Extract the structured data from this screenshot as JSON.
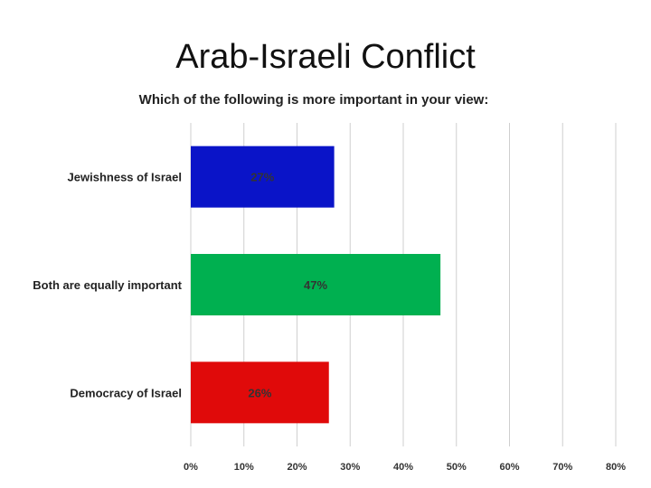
{
  "slide": {
    "title": "Arab-Israeli Conflict"
  },
  "chart_data": {
    "type": "bar",
    "orientation": "horizontal",
    "title": "Which of the following is more important in your view:",
    "categories": [
      "Jewishness of Israel",
      "Both are equally important",
      "Democracy of Israel"
    ],
    "values": [
      27,
      47,
      26
    ],
    "data_labels": [
      "27%",
      "47%",
      "26%"
    ],
    "colors": [
      "#0a14c8",
      "#00b050",
      "#e00a0a"
    ],
    "xlim": [
      0,
      80
    ],
    "x_ticks": [
      0,
      10,
      20,
      30,
      40,
      50,
      60,
      70,
      80
    ],
    "x_tick_labels": [
      "0%",
      "10%",
      "20%",
      "30%",
      "40%",
      "50%",
      "60%",
      "70%",
      "80%"
    ],
    "xlabel": "",
    "ylabel": "",
    "grid": true,
    "legend": "none"
  }
}
